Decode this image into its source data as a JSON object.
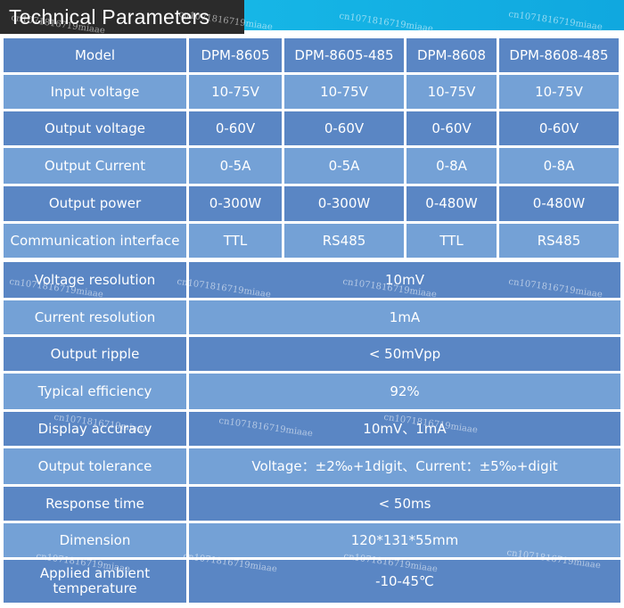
{
  "header": {
    "title": "Technical Parameters"
  },
  "models": {
    "label": "Model",
    "values": [
      "DPM-8605",
      "DPM-8605-485",
      "DPM-8608",
      "DPM-8608-485"
    ]
  },
  "per_model_rows": [
    {
      "label": "Input voltage",
      "values": [
        "10-75V",
        "10-75V",
        "10-75V",
        "10-75V"
      ]
    },
    {
      "label": "Output voltage",
      "values": [
        "0-60V",
        "0-60V",
        "0-60V",
        "0-60V"
      ]
    },
    {
      "label": "Output Current",
      "values": [
        "0-5A",
        "0-5A",
        "0-8A",
        "0-8A"
      ]
    },
    {
      "label": "Output power",
      "values": [
        "0-300W",
        "0-300W",
        "0-480W",
        "0-480W"
      ]
    },
    {
      "label": "Communication interface",
      "values": [
        "TTL",
        "RS485",
        "TTL",
        "RS485"
      ]
    }
  ],
  "shared_rows": [
    {
      "label": "Voltage resolution",
      "value": "10mV"
    },
    {
      "label": "Current resolution",
      "value": "1mA"
    },
    {
      "label": "Output ripple",
      "value": "< 50mVpp"
    },
    {
      "label": "Typical efficiency",
      "value": "92%"
    },
    {
      "label": "Display accuracy",
      "value": "10mV、1mA"
    },
    {
      "label": "Output tolerance",
      "value": "Voltage：±2‰+1digit、Current：±5‰+digit"
    },
    {
      "label": "Response time",
      "value": "< 50ms"
    },
    {
      "label": "Dimension",
      "value": "120*131*55mm"
    },
    {
      "label": "Applied ambient temperature",
      "value": "-10-45℃"
    }
  ],
  "watermark": {
    "text": "cn1071816719miaae"
  }
}
